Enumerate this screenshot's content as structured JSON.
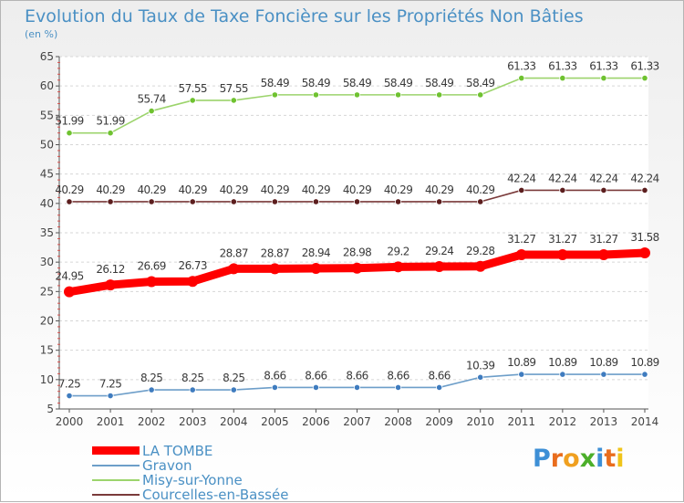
{
  "chart_data": {
    "type": "line",
    "title": "Evolution du Taux de Taxe Foncière sur les Propriétés Non Bâties",
    "ylabel": "(en %)",
    "x": [
      "2000",
      "2001",
      "2002",
      "2003",
      "2004",
      "2005",
      "2006",
      "2007",
      "2008",
      "2009",
      "2010",
      "2011",
      "2012",
      "2013",
      "2014"
    ],
    "ylim": [
      5,
      65
    ],
    "yticks": [
      5,
      10,
      15,
      20,
      25,
      30,
      35,
      40,
      45,
      50,
      55,
      60,
      65
    ],
    "grid": "horizontal",
    "series": [
      {
        "name": "LA TOMBE",
        "color": "#ff0000",
        "point_color": "#ff0000",
        "values": [
          24.95,
          26.12,
          26.69,
          26.73,
          28.87,
          28.87,
          28.94,
          28.98,
          29.2,
          29.24,
          29.28,
          31.27,
          31.27,
          31.27,
          31.58
        ],
        "labels": [
          "24.95",
          "26.12",
          "26.69",
          "26.73",
          "28.87",
          "28.87",
          "28.94",
          "28.98",
          "29.2",
          "29.24",
          "29.28",
          "31.27",
          "31.27",
          "31.27",
          "31.58"
        ]
      },
      {
        "name": "Gravon",
        "color": "#6d9ec9",
        "point_color": "#3f7cbf",
        "values": [
          7.25,
          7.25,
          8.25,
          8.25,
          8.25,
          8.66,
          8.66,
          8.66,
          8.66,
          8.66,
          10.39,
          10.89,
          10.89,
          10.89,
          10.89
        ],
        "labels": [
          "7.25",
          "7.25",
          "8.25",
          "8.25",
          "8.25",
          "8.66",
          "8.66",
          "8.66",
          "8.66",
          "8.66",
          "10.39",
          "10.89",
          "10.89",
          "10.89",
          "10.89"
        ]
      },
      {
        "name": "Misy-sur-Yonne",
        "color": "#9cd46c",
        "point_color": "#6fc230",
        "values": [
          51.99,
          51.99,
          55.74,
          57.55,
          57.55,
          58.49,
          58.49,
          58.49,
          58.49,
          58.49,
          58.49,
          61.33,
          61.33,
          61.33,
          61.33
        ],
        "labels": [
          "51.99",
          "51.99",
          "55.74",
          "57.55",
          "57.55",
          "58.49",
          "58.49",
          "58.49",
          "58.49",
          "58.49",
          "58.49",
          "61.33",
          "61.33",
          "61.33",
          "61.33"
        ]
      },
      {
        "name": "Courcelles-en-Bassée",
        "color": "#7a3a3a",
        "point_color": "#5c1e1e",
        "values": [
          40.29,
          40.29,
          40.29,
          40.29,
          40.29,
          40.29,
          40.29,
          40.29,
          40.29,
          40.29,
          40.29,
          42.24,
          42.24,
          42.24,
          42.24
        ],
        "labels": [
          "40.29",
          "40.29",
          "40.29",
          "40.29",
          "40.29",
          "40.29",
          "40.29",
          "40.29",
          "40.29",
          "40.29",
          "40.29",
          "42.24",
          "42.24",
          "42.24",
          "42.24"
        ]
      }
    ],
    "legend": "bottom-left"
  },
  "logo": {
    "text": "Proxiti",
    "letters": [
      "P",
      "r",
      "o",
      "x",
      "i",
      "t",
      "i"
    ],
    "colors": [
      "#3d8fd6",
      "#e96d1d",
      "#f0a020",
      "#4caf2a",
      "#3d8fd6",
      "#e96d1d",
      "#f0c419"
    ]
  }
}
